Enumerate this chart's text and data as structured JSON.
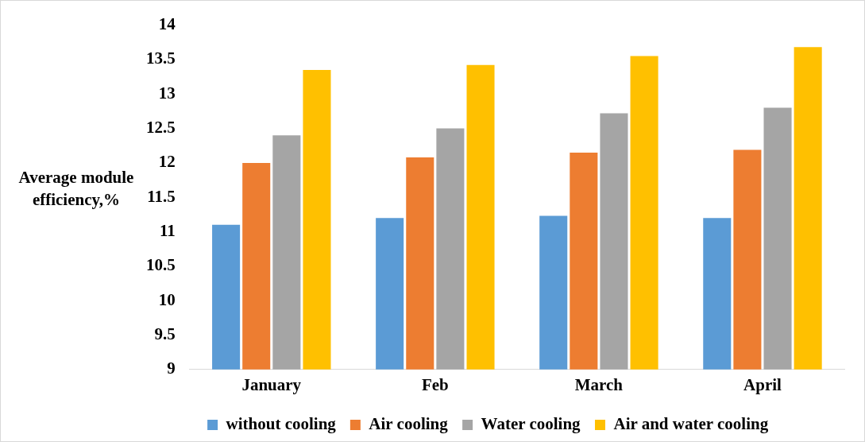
{
  "chart_data": {
    "type": "bar",
    "ylabel": "Average module efficiency,%",
    "categories": [
      "January",
      "Feb",
      "March",
      "April"
    ],
    "series": [
      {
        "name": "without cooling",
        "color": "#5b9bd5",
        "values": [
          11.1,
          11.2,
          11.23,
          11.2
        ]
      },
      {
        "name": "Air cooling",
        "color": "#ed7d31",
        "values": [
          12.0,
          12.08,
          12.15,
          12.19
        ]
      },
      {
        "name": "Water cooling",
        "color": "#a5a5a5",
        "values": [
          12.4,
          12.5,
          12.72,
          12.8
        ]
      },
      {
        "name": "Air and water cooling",
        "color": "#ffc000",
        "values": [
          13.35,
          13.42,
          13.55,
          13.68
        ]
      }
    ],
    "ylim": [
      9,
      14
    ],
    "yticks": [
      9,
      9.5,
      10,
      10.5,
      11,
      11.5,
      12,
      12.5,
      13,
      13.5,
      14
    ],
    "grid": false,
    "legend": "bottom"
  }
}
